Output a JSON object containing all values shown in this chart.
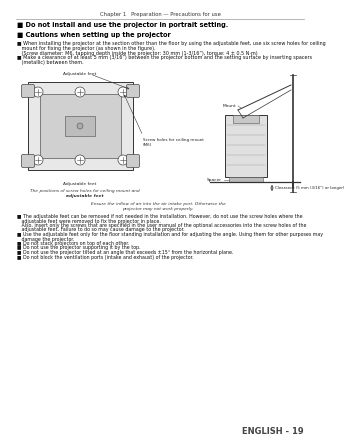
{
  "page_title": "Chapter 1   Preparation — Precautions for use",
  "bg_color": "#ffffff",
  "title1": "■ Do not install and use the projector in portrait setting.",
  "title2": "■ Cautions when setting up the projector",
  "bullet1_line1": "■ When installing the projector at the section other than the floor by using the adjustable feet, use six screw holes for ceiling",
  "bullet1_line2": "   mount for fixing the projector (as shown in the figure).",
  "bullet1_line3": "   (Screw diameter: M6, tapping depth inside the projector: 30 mm (1-3/16”), torque: 4 ± 0.5 N·m)",
  "bullet2_line1": "■ Make a clearance of at least 5 mm (3/16”) between the projector bottom and the setting surface by inserting spacers",
  "bullet2_line2": "   (metallic) between them.",
  "label_adj_feet_top": "Adjustable feet",
  "label_adj_feet_bottom": "Adjustable feet",
  "label_screw_holes": "Screw holes for ceiling mount\n(M6)",
  "label_mount": "Mount",
  "label_spacer": "Spacer",
  "label_clearance": "Clearance (5 mm (3/16”) or longer)",
  "fig_caption1": "The positions of screw holes for ceiling mount and",
  "fig_caption2": "adjustable feet",
  "caption_ensure1": "Ensure the inflow of air into the air intake port. Otherwise the",
  "caption_ensure2": "projector may not work properly.",
  "bullets_bottom": [
    "■ The adjustable feet can be removed if not needed in the installation. However, do not use the screw holes where the",
    "   adjustable feet were removed to fix the projector in place.",
    "   Also, insert only the screws that are specified in the user manual of the optional accessories into the screw holes of the",
    "   adjustable feet. Failure to do so may cause damage to the projector.",
    "■ Use the adjustable feet only for the floor standing installation and for adjusting the angle. Using them for other purposes may",
    "   damage the projector.",
    "■ Do not stack projectors on top of each other.",
    "■ Do not use the projector supporting it by the top.",
    "■ Do not use the projector tilted at an angle that exceeds ±15° from the horizontal plane.",
    "■ Do not block the ventilation ports (intake and exhaust) of the projector."
  ],
  "footer_text": "ENGLISH - 19",
  "text_color": "#111111",
  "title_color": "#000000",
  "footer_color": "#444444",
  "gray_line": "#999999"
}
